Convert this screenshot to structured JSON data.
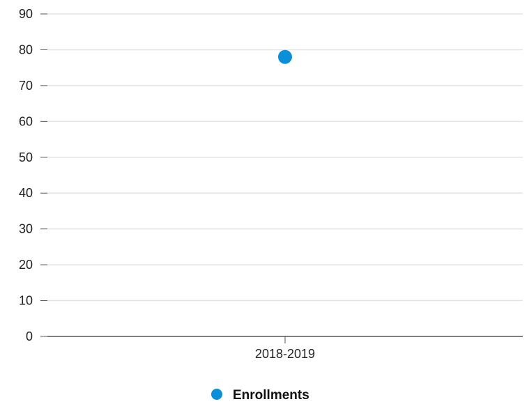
{
  "chart_data": {
    "type": "scatter",
    "categories": [
      "2018-2019"
    ],
    "series": [
      {
        "name": "Enrollments",
        "values": [
          78
        ],
        "color": "#0a8fd8"
      }
    ],
    "ylim": [
      0,
      90
    ],
    "y_ticks": [
      0,
      10,
      20,
      30,
      40,
      50,
      60,
      70,
      80,
      90
    ],
    "grid": true,
    "legend_position": "bottom-center",
    "title": "",
    "xlabel": "",
    "ylabel": ""
  }
}
